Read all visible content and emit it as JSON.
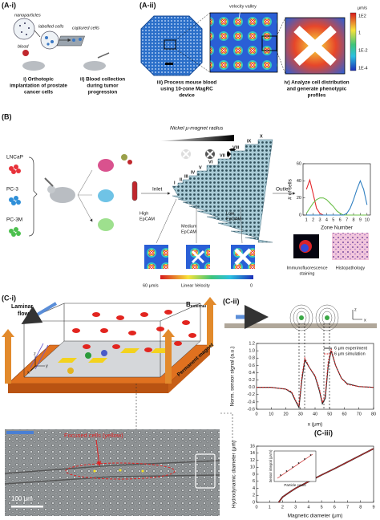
{
  "panel_a": {
    "label_i": "(A-i)",
    "nanoparticles": "nanoparticles",
    "labelled_cells": "labelled cells",
    "captured_cells": "captured cells",
    "blood": "blood",
    "caption_i": [
      "i) Orthotopic",
      "implantation of prostate",
      "cancer cells"
    ],
    "caption_ii": [
      "ii) Blood collection",
      "during tumor",
      "progression"
    ],
    "label_ii": "(A-ii)",
    "velocity_valley": "velocity valley",
    "colorbar": {
      "unit": "μm/s",
      "ticks": [
        "1E2",
        "1",
        "1E-2",
        "1E-4"
      ]
    },
    "caption_iii": [
      "iii) Process mouse blood",
      "using 10-zone MagRC",
      "device"
    ],
    "caption_iv": [
      "iv) Analyze cell distribution",
      "and generate phenotypic",
      "profiles"
    ]
  },
  "panel_b": {
    "label": "(B)",
    "magnet_radius": "Nickel μ-magnet radius",
    "cell_lines": [
      "LNCaP",
      "PC-3",
      "PC-3M"
    ],
    "inlet": "Inlet",
    "outlet": "Outlet",
    "zones": [
      "I",
      "II",
      "III",
      "IV",
      "V",
      "VI",
      "VII",
      "VIII",
      "IX",
      "X"
    ],
    "high": [
      "High",
      "EpCAM"
    ],
    "medium": [
      "Medium",
      "EpCAM"
    ],
    "low": [
      "Low",
      "EpCAM"
    ],
    "velocity_bar": {
      "max": "60 μm/s",
      "label": "Linear Velocity",
      "min": "0"
    },
    "immuno": [
      "Immunofluorescence",
      "staining"
    ],
    "histo": "Histopathology"
  },
  "panel_c": {
    "label_i": "(C-i)",
    "laminar_flow": [
      "Laminar",
      "flow"
    ],
    "b_external": {
      "symbol": "B",
      "subscript": "external"
    },
    "permanent_magnet": "Permanent magnet",
    "focused_cells": "Focused cells (yellow)",
    "scale_bar": "100 μm",
    "axes_3d": [
      "z",
      "y",
      "x"
    ],
    "label_ii": "(C-ii)",
    "axes_2d": [
      "z",
      "x"
    ],
    "label_iii": "(C-iii)"
  },
  "chart_data": [
    {
      "type": "line",
      "x_label": "Zone Number",
      "y_label": "# of cells",
      "x": [
        1,
        1.5,
        2,
        2.5,
        3,
        3.5,
        4,
        4.5,
        5,
        5.5,
        6,
        6.5,
        7,
        7.5,
        8,
        8.5,
        9,
        9.5,
        10
      ],
      "series": [
        {
          "color": "#e4262b",
          "values": [
            30,
            41,
            25,
            8,
            2,
            0,
            0,
            0,
            0,
            0,
            0,
            0,
            0,
            0,
            0,
            0,
            0,
            0,
            0
          ]
        },
        {
          "color": "#6cc04a",
          "values": [
            2,
            8,
            14,
            18,
            20,
            20,
            18,
            14,
            10,
            5,
            2,
            0,
            0,
            0,
            0,
            0,
            0,
            0,
            0
          ]
        },
        {
          "color": "#2f7fc1",
          "values": [
            0,
            0,
            0,
            0,
            0,
            0,
            0,
            0,
            0,
            0,
            0,
            0,
            2,
            8,
            18,
            30,
            40,
            30,
            12
          ]
        }
      ],
      "xlim": [
        0.5,
        10.5
      ],
      "xticks": [
        1,
        2,
        3,
        4,
        5,
        6,
        7,
        8,
        9,
        10
      ],
      "ylim": [
        0,
        60
      ],
      "yticks": [
        0,
        20,
        40,
        60
      ]
    },
    {
      "type": "line",
      "x_label": "x (μm)",
      "y_label": "Norm. sensor signal (a.u.)",
      "x": [
        0,
        10,
        20,
        24,
        27,
        29,
        31,
        33,
        36,
        40,
        43,
        45,
        47,
        49,
        51,
        54,
        58,
        62,
        70,
        80
      ],
      "series": [
        {
          "name": "6 μm experiment",
          "color": "#222222",
          "dashed": false,
          "values": [
            0,
            0,
            -0.05,
            -0.15,
            -0.4,
            -0.55,
            0.2,
            0.75,
            0.55,
            0.3,
            -0.1,
            -0.45,
            -0.3,
            0.6,
            1.0,
            0.6,
            0.25,
            0.1,
            0.02,
            0
          ]
        },
        {
          "name": "6 μm simulation",
          "color": "#d62728",
          "dashed": true,
          "values": [
            0,
            0,
            -0.05,
            -0.12,
            -0.38,
            -0.5,
            0.3,
            0.8,
            0.55,
            0.32,
            -0.05,
            -0.42,
            -0.2,
            0.7,
            1.05,
            0.6,
            0.25,
            0.08,
            0.02,
            0
          ]
        }
      ],
      "legend": "upper right",
      "xlim": [
        0,
        80
      ],
      "xticks": [
        0,
        10,
        20,
        30,
        40,
        50,
        60,
        70,
        80
      ],
      "ylim": [
        -0.6,
        1.2
      ],
      "yticks": [
        -0.6,
        -0.4,
        -0.2,
        {
          "value": 0,
          "label": "0.0"
        },
        0.2,
        0.4,
        0.6,
        0.8,
        {
          "value": 1,
          "label": "1.0"
        },
        1.2
      ]
    },
    {
      "type": "line",
      "x_label": "Magnetic diameter (μm)",
      "y_label": "Hydrodynamic diameter (μm)",
      "x": [
        1.7,
        2,
        2.5,
        3,
        4,
        5,
        6,
        7,
        8,
        9
      ],
      "values": [
        0,
        1.5,
        2.8,
        4,
        5.9,
        7.8,
        9.6,
        11.5,
        13.4,
        15.3
      ],
      "color": "#c62828",
      "inset": {
        "y_label": "Sensor integral (μVm)",
        "x_label": "Particle count"
      },
      "xlim": [
        0,
        9
      ],
      "xticks": [
        0,
        1,
        2,
        3,
        4,
        5,
        6,
        7,
        8,
        9
      ],
      "ylim": [
        0,
        16
      ],
      "yticks": [
        0,
        2,
        4,
        6,
        8,
        10,
        12,
        14,
        16
      ]
    }
  ]
}
